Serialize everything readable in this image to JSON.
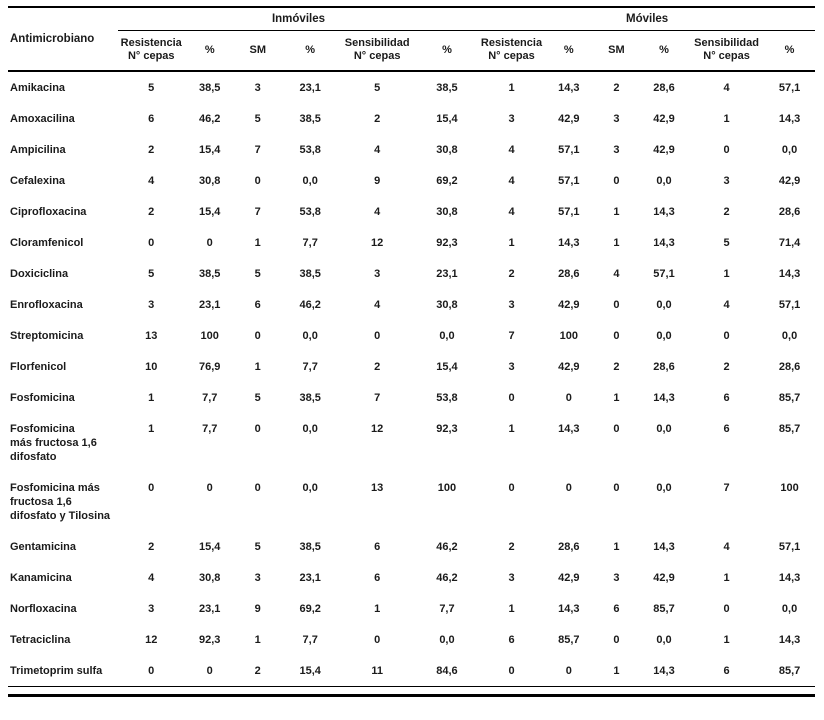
{
  "table": {
    "row_header_label": "Antimicrobiano",
    "groups": [
      {
        "label": "Inmóviles",
        "colspan": 6
      },
      {
        "label": "Móviles",
        "colspan": 6
      }
    ],
    "column_headers": [
      {
        "lines": [
          "Resistencia",
          "N° cepas"
        ]
      },
      {
        "lines": [
          "%"
        ]
      },
      {
        "lines": [
          "SM"
        ]
      },
      {
        "lines": [
          "%"
        ]
      },
      {
        "lines": [
          "Sensibilidad",
          "N° cepas"
        ]
      },
      {
        "lines": [
          "%"
        ]
      },
      {
        "lines": [
          "Resistencia",
          "N° cepas"
        ]
      },
      {
        "lines": [
          "%"
        ]
      },
      {
        "lines": [
          "SM"
        ]
      },
      {
        "lines": [
          "%"
        ]
      },
      {
        "lines": [
          "Sensibilidad",
          "N° cepas"
        ]
      },
      {
        "lines": [
          "%"
        ]
      }
    ],
    "rows": [
      {
        "name": "Amikacina",
        "values": [
          "5",
          "38,5",
          "3",
          "23,1",
          "5",
          "38,5",
          "1",
          "14,3",
          "2",
          "28,6",
          "4",
          "57,1"
        ]
      },
      {
        "name": "Amoxacilina",
        "values": [
          "6",
          "46,2",
          "5",
          "38,5",
          "2",
          "15,4",
          "3",
          "42,9",
          "3",
          "42,9",
          "1",
          "14,3"
        ]
      },
      {
        "name": "Ampicilina",
        "values": [
          "2",
          "15,4",
          "7",
          "53,8",
          "4",
          "30,8",
          "4",
          "57,1",
          "3",
          "42,9",
          "0",
          "0,0"
        ]
      },
      {
        "name": "Cefalexina",
        "values": [
          "4",
          "30,8",
          "0",
          "0,0",
          "9",
          "69,2",
          "4",
          "57,1",
          "0",
          "0,0",
          "3",
          "42,9"
        ]
      },
      {
        "name": "Ciprofloxacina",
        "values": [
          "2",
          "15,4",
          "7",
          "53,8",
          "4",
          "30,8",
          "4",
          "57,1",
          "1",
          "14,3",
          "2",
          "28,6"
        ]
      },
      {
        "name": "Cloramfenicol",
        "values": [
          "0",
          "0",
          "1",
          "7,7",
          "12",
          "92,3",
          "1",
          "14,3",
          "1",
          "14,3",
          "5",
          "71,4"
        ]
      },
      {
        "name": "Doxiciclina",
        "values": [
          "5",
          "38,5",
          "5",
          "38,5",
          "3",
          "23,1",
          "2",
          "28,6",
          "4",
          "57,1",
          "1",
          "14,3"
        ]
      },
      {
        "name": "Enrofloxacina",
        "values": [
          "3",
          "23,1",
          "6",
          "46,2",
          "4",
          "30,8",
          "3",
          "42,9",
          "0",
          "0,0",
          "4",
          "57,1"
        ]
      },
      {
        "name": "Streptomicina",
        "values": [
          "13",
          "100",
          "0",
          "0,0",
          "0",
          "0,0",
          "7",
          "100",
          "0",
          "0,0",
          "0",
          "0,0"
        ]
      },
      {
        "name": "Florfenicol",
        "values": [
          "10",
          "76,9",
          "1",
          "7,7",
          "2",
          "15,4",
          "3",
          "42,9",
          "2",
          "28,6",
          "2",
          "28,6"
        ]
      },
      {
        "name": "Fosfomicina",
        "values": [
          "1",
          "7,7",
          "5",
          "38,5",
          "7",
          "53,8",
          "0",
          "0",
          "1",
          "14,3",
          "6",
          "85,7"
        ]
      },
      {
        "name": "Fosfomicina\nmás fructosa 1,6\ndifosfato",
        "values": [
          "1",
          "7,7",
          "0",
          "0,0",
          "12",
          "92,3",
          "1",
          "14,3",
          "0",
          "0,0",
          "6",
          "85,7"
        ]
      },
      {
        "name": "Fosfomicina más\nfructosa 1,6\ndifosfato y Tilosina",
        "values": [
          "0",
          "0",
          "0",
          "0,0",
          "13",
          "100",
          "0",
          "0",
          "0",
          "0,0",
          "7",
          "100"
        ]
      },
      {
        "name": "Gentamicina",
        "values": [
          "2",
          "15,4",
          "5",
          "38,5",
          "6",
          "46,2",
          "2",
          "28,6",
          "1",
          "14,3",
          "4",
          "57,1"
        ]
      },
      {
        "name": "Kanamicina",
        "values": [
          "4",
          "30,8",
          "3",
          "23,1",
          "6",
          "46,2",
          "3",
          "42,9",
          "3",
          "42,9",
          "1",
          "14,3"
        ]
      },
      {
        "name": "Norfloxacina",
        "values": [
          "3",
          "23,1",
          "9",
          "69,2",
          "1",
          "7,7",
          "1",
          "14,3",
          "6",
          "85,7",
          "0",
          "0,0"
        ]
      },
      {
        "name": "Tetraciclina",
        "values": [
          "12",
          "92,3",
          "1",
          "7,7",
          "0",
          "0,0",
          "6",
          "85,7",
          "0",
          "0,0",
          "1",
          "14,3"
        ]
      },
      {
        "name": "Trimetoprim sulfa",
        "values": [
          "0",
          "0",
          "2",
          "15,4",
          "11",
          "84,6",
          "0",
          "0",
          "1",
          "14,3",
          "6",
          "85,7"
        ]
      }
    ]
  }
}
